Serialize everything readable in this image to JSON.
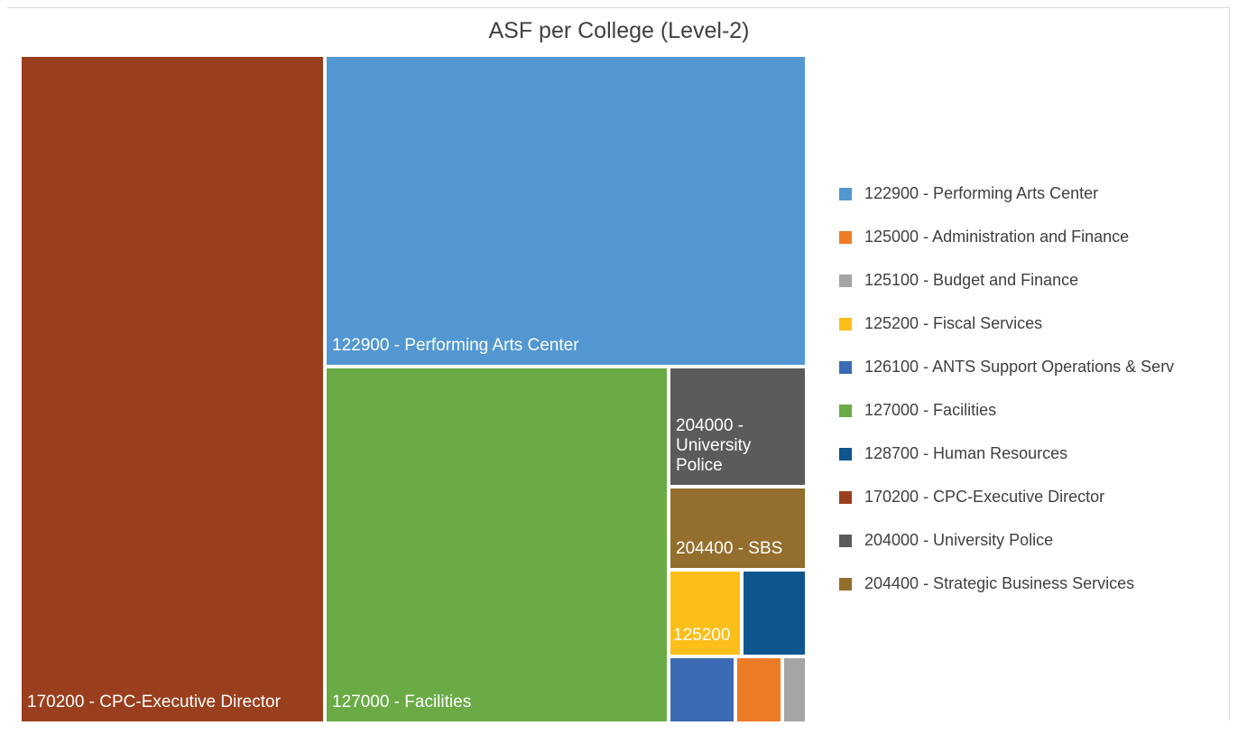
{
  "chart_data": {
    "type": "treemap",
    "title": "ASF per College (Level-2)",
    "items": [
      {
        "code": "170200",
        "name": "170200 - CPC-Executive Director",
        "label": "170200 - CPC-Executive Director",
        "color": "#9A3F1E",
        "value": 1108
      },
      {
        "code": "122900",
        "name": "122900 - Performing Arts Center",
        "label": "122900 - Performing Arts Center",
        "color": "#5297D2",
        "value": 917
      },
      {
        "code": "127000",
        "name": "127000 - Facilities",
        "label": "127000 - Facilities",
        "color": "#6AAB46",
        "value": 751
      },
      {
        "code": "204000",
        "name": "204000 - University Police",
        "label": "204000 - University Police",
        "color": "#5B5B5B",
        "value": 101
      },
      {
        "code": "204400",
        "name": "204400 - Strategic Business Services",
        "label": "204400 - SBS",
        "color": "#946E2D",
        "value": 66
      },
      {
        "code": "125200",
        "name": "125200 - Fiscal Services",
        "label": "125200",
        "color": "#FCBE19",
        "value": 52
      },
      {
        "code": "128700",
        "name": "128700 - Human Resources",
        "label": "",
        "color": "#0F568F",
        "value": 46
      },
      {
        "code": "126100",
        "name": "126100 - ANTS Support Operations & Serv",
        "label": "",
        "color": "#3C6AB4",
        "value": 26
      },
      {
        "code": "125000",
        "name": "125000 - Administration and Finance",
        "label": "",
        "color": "#EE7B26",
        "value": 19
      },
      {
        "code": "125100",
        "name": "125100 - Budget and Finance",
        "label": "",
        "color": "#A5A5A5",
        "value": 8
      }
    ],
    "legend_position": "right",
    "legend": [
      {
        "label": "122900 - Performing Arts Center",
        "color": "#5297D2"
      },
      {
        "label": "125000 - Administration and Finance",
        "color": "#EE7B26"
      },
      {
        "label": "125100 - Budget and Finance",
        "color": "#A5A5A5"
      },
      {
        "label": "125200 - Fiscal Services",
        "color": "#FCBE19"
      },
      {
        "label": "126100 - ANTS Support Operations & Serv",
        "color": "#3C6AB4"
      },
      {
        "label": "127000 - Facilities",
        "color": "#6AAB46"
      },
      {
        "label": "128700 - Human Resources",
        "color": "#0F568F"
      },
      {
        "label": "170200 - CPC-Executive Director",
        "color": "#9A3F1E"
      },
      {
        "label": "204000 - University Police",
        "color": "#5B5B5B"
      },
      {
        "label": "204400 - Strategic Business Services",
        "color": "#946E2D"
      }
    ]
  }
}
